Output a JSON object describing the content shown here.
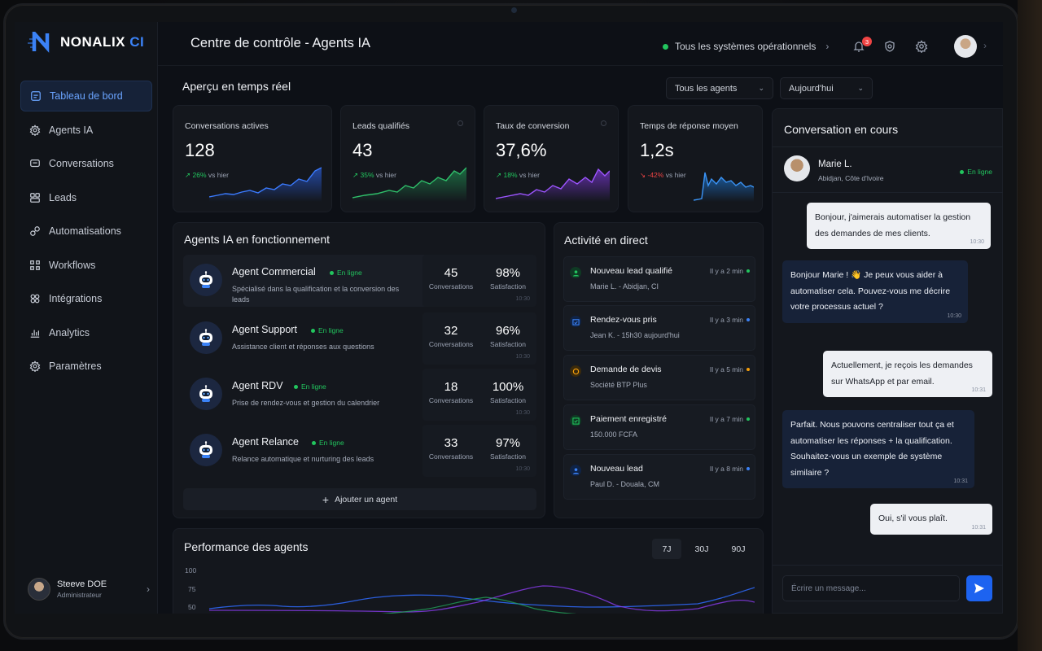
{
  "app": {
    "logo": "NONALIX",
    "logo_accent": "CI",
    "title": "Centre de contrôle - Agents IA"
  },
  "status": {
    "text": "Tous les systèmes opérationnels",
    "notifications": "3"
  },
  "sidebar": {
    "items": [
      {
        "label": "Tableau de bord",
        "icon": "dashboard-icon"
      },
      {
        "label": "Agents IA",
        "icon": "gear-icon"
      },
      {
        "label": "Conversations",
        "icon": "chat-icon"
      },
      {
        "label": "Leads",
        "icon": "users-icon"
      },
      {
        "label": "Automatisations",
        "icon": "automation-icon"
      },
      {
        "label": "Workflows",
        "icon": "workflow-icon"
      },
      {
        "label": "Intégrations",
        "icon": "integration-icon"
      },
      {
        "label": "Analytics",
        "icon": "analytics-icon"
      },
      {
        "label": "Paramètres",
        "icon": "settings-icon"
      }
    ],
    "user": {
      "name": "Steeve DOE",
      "role": "Administrateur"
    }
  },
  "overview": {
    "title": "Aperçu en temps réel",
    "filter_agents": "Tous les agents",
    "filter_period": "Aujourd'hui"
  },
  "kpis": [
    {
      "label": "Conversations actives",
      "value": "128",
      "delta": "26%",
      "delta_dir": "up",
      "suffix": "vs hier",
      "color": "#2f6bff"
    },
    {
      "label": "Leads qualifiés",
      "value": "43",
      "delta": "35%",
      "delta_dir": "up",
      "suffix": "vs hier",
      "color": "#22a35a"
    },
    {
      "label": "Taux de conversion",
      "value": "37,6%",
      "delta": "18%",
      "delta_dir": "up",
      "suffix": "vs hier",
      "color": "#8b3cf0"
    },
    {
      "label": "Temps de réponse moyen",
      "value": "1,2s",
      "delta": "-42%",
      "delta_dir": "down",
      "suffix": "vs hier",
      "color": "#1f7fe0"
    }
  ],
  "agents": {
    "title": "Agents IA en fonctionnement",
    "online_label": "En ligne",
    "conv_label": "Conversations",
    "sat_label": "Satisfaction",
    "time": "10:30",
    "items": [
      {
        "name": "Agent Commercial",
        "desc": "Spécialisé dans la qualification et la conversion des leads",
        "conversations": "45",
        "satisfaction": "98%"
      },
      {
        "name": "Agent Support",
        "desc": "Assistance client et réponses aux questions",
        "conversations": "32",
        "satisfaction": "96%"
      },
      {
        "name": "Agent RDV",
        "desc": "Prise de rendez-vous et gestion du calendrier",
        "conversations": "18",
        "satisfaction": "100%"
      },
      {
        "name": "Agent Relance",
        "desc": "Relance automatique et nurturing des leads",
        "conversations": "33",
        "satisfaction": "97%"
      }
    ],
    "add_label": "Ajouter un agent"
  },
  "activity": {
    "title": "Activité en direct",
    "items": [
      {
        "title": "Nouveau lead qualifié",
        "sub": "Marie L. - Abidjan, CI",
        "time": "Il y a 2 min",
        "color": "#22c55e"
      },
      {
        "title": "Rendez-vous pris",
        "sub": "Jean K. - 15h30 aujourd'hui",
        "time": "Il y a 3 min",
        "color": "#3b82f6"
      },
      {
        "title": "Demande de devis",
        "sub": "Société BTP Plus",
        "time": "Il y a 5 min",
        "color": "#f59e0b"
      },
      {
        "title": "Paiement enregistré",
        "sub": "150.000 FCFA",
        "time": "Il y a 7 min",
        "color": "#22c55e"
      },
      {
        "title": "Nouveau lead",
        "sub": "Paul D. - Douala, CM",
        "time": "Il y a 8 min",
        "color": "#3b82f6"
      }
    ]
  },
  "chat": {
    "title": "Conversation en cours",
    "contact": {
      "name": "Marie L.",
      "location": "Abidjan, Côte d'Ivoire",
      "status": "En ligne"
    },
    "messages": [
      {
        "dir": "out",
        "text": "Bonjour, j'aimerais automatiser la gestion des demandes de mes clients.",
        "time": "10:30"
      },
      {
        "dir": "in",
        "text": "Bonjour Marie ! 👋 Je peux vous aider à automatiser cela. Pouvez-vous me décrire votre processus actuel ?",
        "time": "10:30"
      },
      {
        "dir": "out",
        "text": "Actuellement, je reçois les demandes sur WhatsApp et par email.",
        "time": "10:31"
      },
      {
        "dir": "in",
        "text": "Parfait. Nous pouvons centraliser tout ça et automatiser les réponses + la qualification. Souhaitez-vous un exemple de système similaire ?",
        "time": "10:31"
      },
      {
        "dir": "out",
        "text": "Oui, s'il vous plaît.",
        "time": "10:31"
      }
    ],
    "input_placeholder": "Écrire un message..."
  },
  "performance": {
    "title": "Performance des agents",
    "ranges": [
      "7J",
      "30J",
      "90J"
    ],
    "active_range": "7J",
    "y_ticks": [
      "100",
      "75",
      "50"
    ]
  }
}
